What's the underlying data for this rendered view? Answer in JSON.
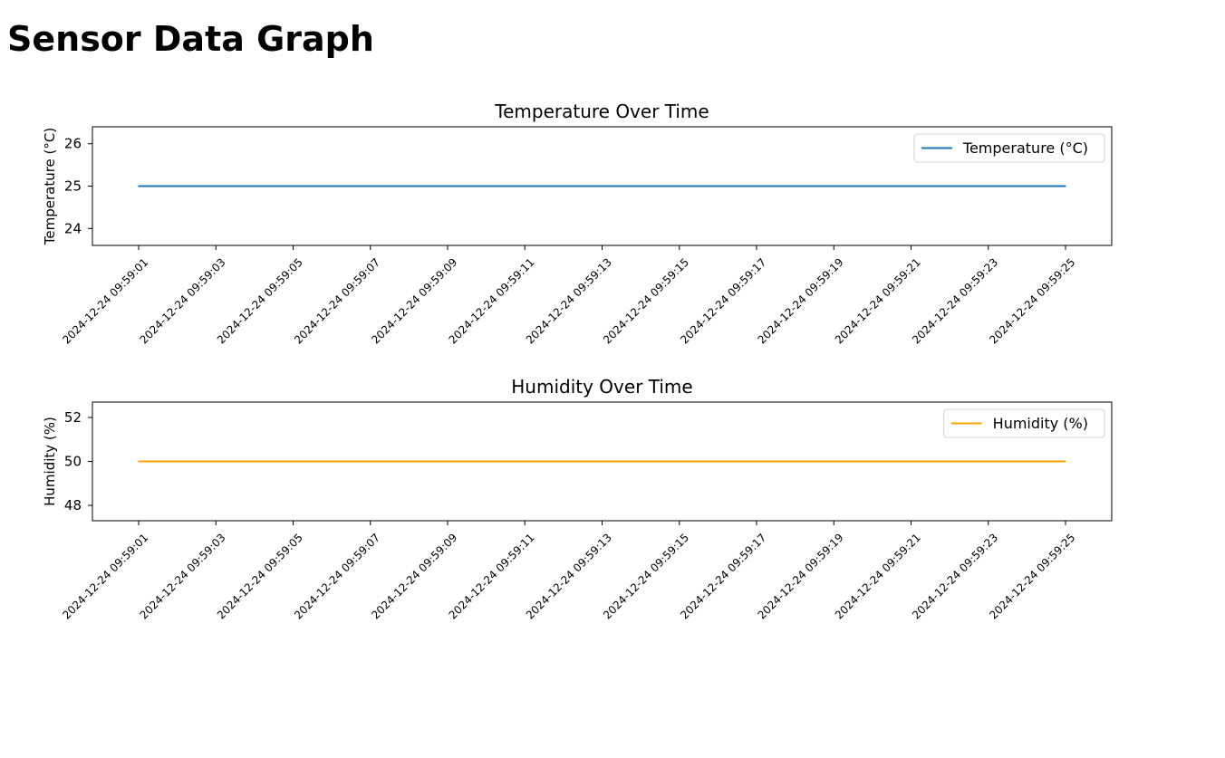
{
  "page": {
    "title": "Sensor Data Graph"
  },
  "chart_data": [
    {
      "type": "line",
      "title": "Temperature Over Time",
      "xlabel": "",
      "ylabel": "Temperature (°C)",
      "ylim": [
        23.6,
        26.4
      ],
      "yticks": [
        24,
        25,
        26
      ],
      "x": [
        "2024-12-24 09:59:01",
        "2024-12-24 09:59:03",
        "2024-12-24 09:59:05",
        "2024-12-24 09:59:07",
        "2024-12-24 09:59:09",
        "2024-12-24 09:59:11",
        "2024-12-24 09:59:13",
        "2024-12-24 09:59:15",
        "2024-12-24 09:59:17",
        "2024-12-24 09:59:19",
        "2024-12-24 09:59:21",
        "2024-12-24 09:59:23",
        "2024-12-24 09:59:25"
      ],
      "series": [
        {
          "name": "Temperature (°C)",
          "color": "#1f77b4",
          "values": [
            25,
            25,
            25,
            25,
            25,
            25,
            25,
            25,
            25,
            25,
            25,
            25,
            25
          ]
        }
      ],
      "legend": "top-right",
      "grid": false
    },
    {
      "type": "line",
      "title": "Humidity Over Time",
      "xlabel": "",
      "ylabel": "Humidity (%)",
      "ylim": [
        47.3,
        52.7
      ],
      "yticks": [
        48,
        50,
        52
      ],
      "x": [
        "2024-12-24 09:59:01",
        "2024-12-24 09:59:03",
        "2024-12-24 09:59:05",
        "2024-12-24 09:59:07",
        "2024-12-24 09:59:09",
        "2024-12-24 09:59:11",
        "2024-12-24 09:59:13",
        "2024-12-24 09:59:15",
        "2024-12-24 09:59:17",
        "2024-12-24 09:59:19",
        "2024-12-24 09:59:21",
        "2024-12-24 09:59:23",
        "2024-12-24 09:59:25"
      ],
      "series": [
        {
          "name": "Humidity (%)",
          "color": "#ffa500",
          "values": [
            50,
            50,
            50,
            50,
            50,
            50,
            50,
            50,
            50,
            50,
            50,
            50,
            50
          ]
        }
      ],
      "legend": "top-right",
      "grid": false
    }
  ]
}
